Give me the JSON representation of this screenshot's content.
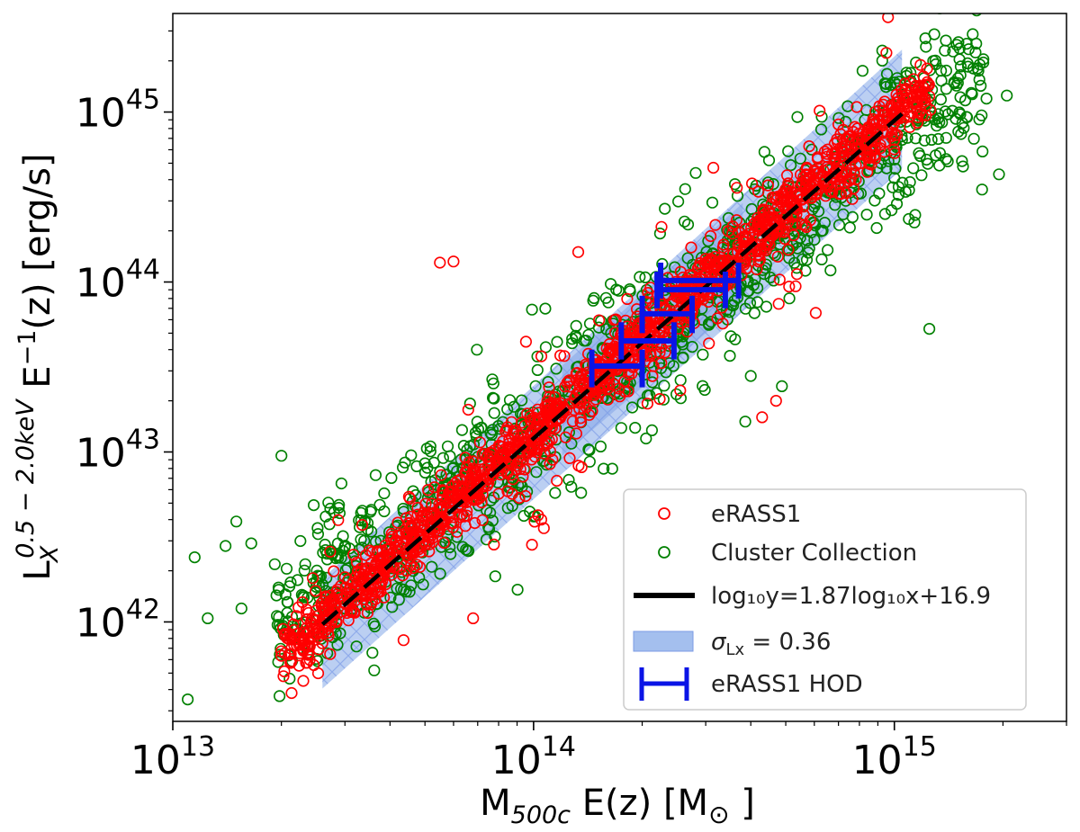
{
  "chart_data": {
    "type": "scatter",
    "x_scale": "log",
    "y_scale": "log",
    "xlim": [
      10000000000000.0,
      3000000000000000.0
    ],
    "ylim": [
      2.6e+41,
      3.8e+45
    ],
    "x_ticks": [
      {
        "value": 10000000000000.0,
        "base": "10",
        "exp": "13"
      },
      {
        "value": 100000000000000.0,
        "base": "10",
        "exp": "14"
      },
      {
        "value": 1000000000000000.0,
        "base": "10",
        "exp": "15"
      }
    ],
    "y_ticks": [
      {
        "value": 1e+42,
        "base": "10",
        "exp": "42"
      },
      {
        "value": 1e+43,
        "base": "10",
        "exp": "43"
      },
      {
        "value": 1e+44,
        "base": "10",
        "exp": "44"
      },
      {
        "value": 1e+45,
        "base": "10",
        "exp": "45"
      }
    ],
    "xlabel": {
      "main": "M",
      "sub": "500c",
      "rest": " E(z) [M",
      "sun": "⊙",
      "close": " ]"
    },
    "ylabel": {
      "main": "L",
      "sub": "X",
      "sup": "0.5 − 2.0keV",
      "rest": " E",
      "restsup": "−1",
      "tail": "(z) [erg/s]"
    },
    "fit": {
      "slope": 1.87,
      "intercept": 16.9,
      "x_range": [
        26000000000000.0,
        1050000000000000.0
      ]
    },
    "scatter_band": {
      "sigma_dex": 0.36,
      "x_range": [
        26000000000000.0,
        1050000000000000.0
      ]
    },
    "hod_points": [
      {
        "x": 175000000000000.0,
        "y": 3.2e+43,
        "xerr": [
          145000000000000.0,
          200000000000000.0
        ],
        "yerr": [
          2.4e+43,
          4e+43
        ]
      },
      {
        "x": 205000000000000.0,
        "y": 4.5e+43,
        "xerr": [
          175000000000000.0,
          245000000000000.0
        ],
        "yerr": [
          3.5e+43,
          5.8e+43
        ]
      },
      {
        "x": 235000000000000.0,
        "y": 6.5e+43,
        "xerr": [
          200000000000000.0,
          275000000000000.0
        ],
        "yerr": [
          5e+43,
          8.3e+43
        ]
      },
      {
        "x": 275000000000000.0,
        "y": 9e+43,
        "xerr": [
          220000000000000.0,
          340000000000000.0
        ],
        "yerr": [
          7e+43,
          1.15e+44
        ]
      },
      {
        "x": 290000000000000.0,
        "y": 1.02e+44,
        "xerr": [
          225000000000000.0,
          370000000000000.0
        ],
        "yerr": [
          8e+43,
          1.3e+44
        ]
      }
    ],
    "series": [
      {
        "name": "eRASS1",
        "color": "#ff0000",
        "marker": "open-circle"
      },
      {
        "name": "Cluster Collection",
        "color": "#008000",
        "marker": "open-circle"
      }
    ],
    "legend": {
      "position": "lower-right",
      "entries": [
        {
          "label": "eRASS1",
          "kind": "marker",
          "color": "#ff0000"
        },
        {
          "label": "Cluster Collection",
          "kind": "marker",
          "color": "#008000"
        },
        {
          "label": "log₁₀y=1.87log₁₀x+16.9",
          "kind": "line",
          "color": "#000000"
        },
        {
          "label_main": "σ",
          "label_sub": "Lx",
          "label_rest": " = 0.36",
          "kind": "band",
          "color": "#a4bfee"
        },
        {
          "label": "eRASS1 HOD",
          "kind": "errorbar",
          "color": "#0a14e6"
        }
      ]
    },
    "outliers_red": [
      [
        55000000000000.0,
        1.3e+44
      ],
      [
        60000000000000.0,
        1.32e+44
      ],
      [
        133000000000000.0,
        1.5e+44
      ],
      [
        135000000000000.0,
        1.5e+43
      ],
      [
        430000000000000.0,
        1.6e+43
      ],
      [
        470000000000000.0,
        2e+43
      ],
      [
        23000000000000.0,
        4.5e+41
      ],
      [
        68000000000000.0,
        1.05e+42
      ],
      [
        95000000000000.0,
        5.5e+42
      ],
      [
        105000000000000.0,
        4e+42
      ],
      [
        255000000000000.0,
        2.3e+43
      ],
      [
        215000000000000.0,
        3.2e+43
      ],
      [
        315000000000000.0,
        4.7e+44
      ],
      [
        420000000000000.0,
        3.4e+44
      ]
    ],
    "outliers_green": [
      [
        11000000000000.0,
        3.5e+41
      ],
      [
        11500000000000.0,
        2.4e+42
      ],
      [
        12500000000000.0,
        1.05e+42
      ],
      [
        14000000000000.0,
        2.8e+42
      ],
      [
        15000000000000.0,
        3.9e+42
      ],
      [
        15500000000000.0,
        1.2e+42
      ],
      [
        16500000000000.0,
        2.9e+42
      ],
      [
        20000000000000.0,
        9.5e+42
      ],
      [
        1950000000000000.0,
        4.3e+44
      ],
      [
        1750000000000000.0,
        3.5e+44
      ],
      [
        1250000000000000.0,
        5.3e+43
      ],
      [
        1800000000000000.0,
        1.2e+45
      ],
      [
        2050000000000000.0,
        1.25e+45
      ],
      [
        1600000000000000.0,
        1.85e+45
      ],
      [
        400000000000000.0,
        2.8e+43
      ],
      [
        205000000000000.0,
        1.2e+43
      ]
    ]
  }
}
